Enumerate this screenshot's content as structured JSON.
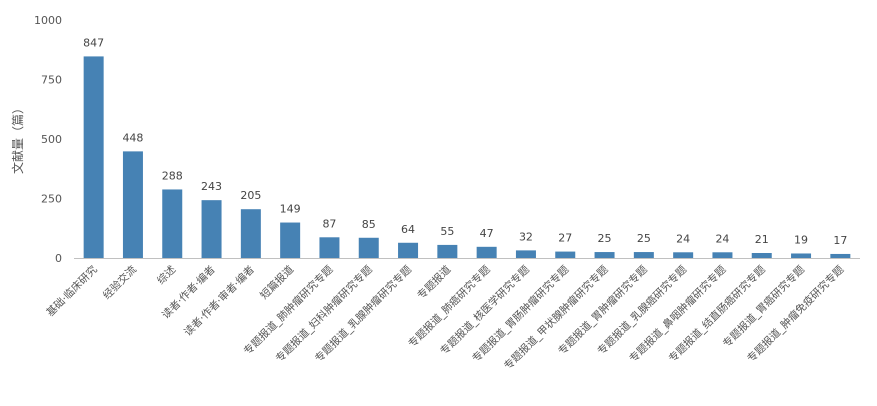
{
  "chart_data": {
    "type": "bar",
    "ylabel": "文献量（篇）",
    "xlabel": "",
    "ylim": [
      0,
      1000
    ],
    "yticks": [
      0,
      250,
      500,
      750,
      1000
    ],
    "grid": false,
    "bar_color": "#4682b4",
    "categories": [
      "基础·临床研究",
      "经验交流",
      "综述",
      "读者·作者·编者",
      "读者·作者·审者·编者",
      "短篇报道",
      "专题报道_肺肿瘤研究专题",
      "专题报道_妇科肿瘤研究专题",
      "专题报道_乳腺肿瘤研究专题",
      "专题报道",
      "专题报道_肺癌研究专题",
      "专题报道_核医学研究专题",
      "专题报道_胃肠肿瘤研究专题",
      "专题报道_甲状腺肿瘤研究专题",
      "专题报道_胃肿瘤研究专题",
      "专题报道_乳腺癌研究专题",
      "专题报道_鼻咽肿瘤研究专题",
      "专题报道_结直肠癌研究专题",
      "专题报道_胃癌研究专题",
      "专题报道_肿瘤免疫研究专题"
    ],
    "values": [
      847,
      448,
      288,
      243,
      205,
      149,
      87,
      85,
      64,
      55,
      47,
      32,
      27,
      25,
      25,
      24,
      24,
      21,
      19,
      17
    ]
  }
}
